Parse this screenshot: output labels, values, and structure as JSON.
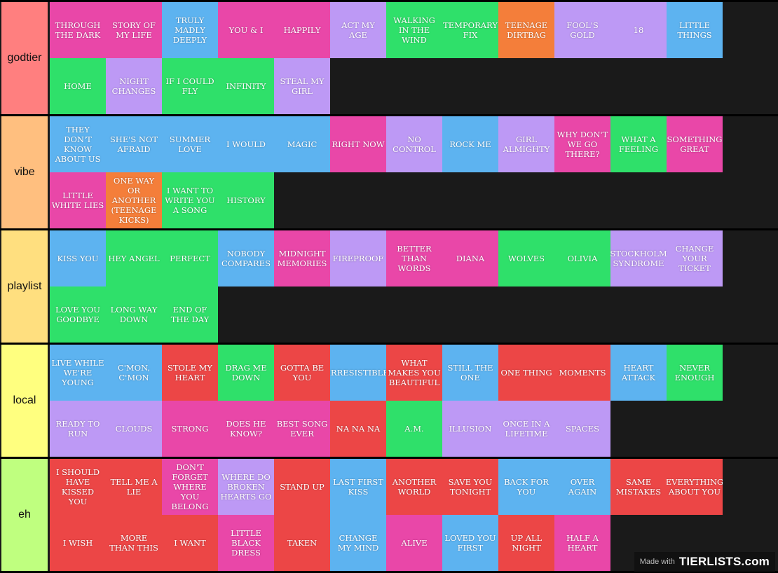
{
  "colors": {
    "pink": "#e947a8",
    "blue": "#5db3f0",
    "purple": "#bd99f5",
    "green": "#2fe06a",
    "orange": "#f47e3a",
    "red": "#ec4646"
  },
  "tiers": [
    {
      "label": "godtier",
      "color": "#ff7f7f",
      "items": [
        {
          "text": "THROUGH THE DARK",
          "color": "pink"
        },
        {
          "text": "STORY OF MY LIFE",
          "color": "pink"
        },
        {
          "text": "TRULY MADLY DEEPLY",
          "color": "blue"
        },
        {
          "text": "YOU & I",
          "color": "pink"
        },
        {
          "text": "HAPPILY",
          "color": "pink"
        },
        {
          "text": "ACT MY AGE",
          "color": "purple"
        },
        {
          "text": "WALKING IN THE WIND",
          "color": "green"
        },
        {
          "text": "TEMPORARY FIX",
          "color": "green"
        },
        {
          "text": "TEENAGE DIRTBAG",
          "color": "orange"
        },
        {
          "text": "FOOL'S GOLD",
          "color": "purple"
        },
        {
          "text": "18",
          "color": "purple"
        },
        {
          "text": "LITTLE THINGS",
          "color": "blue"
        },
        {
          "text": "HOME",
          "color": "green"
        },
        {
          "text": "NIGHT CHANGES",
          "color": "purple"
        },
        {
          "text": "IF I COULD FLY",
          "color": "green"
        },
        {
          "text": "INFINITY",
          "color": "green"
        },
        {
          "text": "STEAL MY GIRL",
          "color": "purple"
        }
      ]
    },
    {
      "label": "vibe",
      "color": "#ffbf7f",
      "items": [
        {
          "text": "THEY DON'T KNOW ABOUT US",
          "color": "blue"
        },
        {
          "text": "SHE'S NOT AFRAID",
          "color": "blue"
        },
        {
          "text": "SUMMER LOVE",
          "color": "blue"
        },
        {
          "text": "I WOULD",
          "color": "blue"
        },
        {
          "text": "MAGIC",
          "color": "blue"
        },
        {
          "text": "RIGHT NOW",
          "color": "pink"
        },
        {
          "text": "NO CONTROL",
          "color": "purple"
        },
        {
          "text": "ROCK ME",
          "color": "blue"
        },
        {
          "text": "GIRL ALMIGHTY",
          "color": "purple"
        },
        {
          "text": "WHY DON'T WE GO THERE?",
          "color": "pink"
        },
        {
          "text": "WHAT A FEELING",
          "color": "green"
        },
        {
          "text": "SOMETHING GREAT",
          "color": "pink"
        },
        {
          "text": "LITTLE WHITE LIES",
          "color": "pink"
        },
        {
          "text": "ONE WAY OR ANOTHER (TEENAGE KICKS)",
          "color": "orange"
        },
        {
          "text": "I WANT TO WRITE YOU A SONG",
          "color": "green"
        },
        {
          "text": "HISTORY",
          "color": "green"
        }
      ]
    },
    {
      "label": "playlist",
      "color": "#ffdf7f",
      "items": [
        {
          "text": "KISS YOU",
          "color": "blue"
        },
        {
          "text": "HEY ANGEL",
          "color": "green"
        },
        {
          "text": "PERFECT",
          "color": "green"
        },
        {
          "text": "NOBODY COMPARES",
          "color": "blue"
        },
        {
          "text": "MIDNIGHT MEMORIES",
          "color": "pink"
        },
        {
          "text": "FIREPROOF",
          "color": "purple"
        },
        {
          "text": "BETTER THAN WORDS",
          "color": "pink"
        },
        {
          "text": "DIANA",
          "color": "pink"
        },
        {
          "text": "WOLVES",
          "color": "green"
        },
        {
          "text": "OLIVIA",
          "color": "green"
        },
        {
          "text": "STOCKHOLM SYNDROME",
          "color": "purple"
        },
        {
          "text": "CHANGE YOUR TICKET",
          "color": "purple"
        },
        {
          "text": "LOVE YOU GOODBYE",
          "color": "green"
        },
        {
          "text": "LONG WAY DOWN",
          "color": "green"
        },
        {
          "text": "END OF THE DAY",
          "color": "green"
        }
      ]
    },
    {
      "label": "local",
      "color": "#ffff7f",
      "items": [
        {
          "text": "LIVE WHILE WE'RE YOUNG",
          "color": "blue"
        },
        {
          "text": "C'MON, C'MON",
          "color": "blue"
        },
        {
          "text": "STOLE MY HEART",
          "color": "red"
        },
        {
          "text": "DRAG ME DOWN",
          "color": "green"
        },
        {
          "text": "GOTTA BE YOU",
          "color": "red"
        },
        {
          "text": "IRRESISTIBLE",
          "color": "blue"
        },
        {
          "text": "WHAT MAKES YOU BEAUTIFUL",
          "color": "red"
        },
        {
          "text": "STILL THE ONE",
          "color": "blue"
        },
        {
          "text": "ONE THING",
          "color": "red"
        },
        {
          "text": "MOMENTS",
          "color": "red"
        },
        {
          "text": "HEART ATTACK",
          "color": "blue"
        },
        {
          "text": "NEVER ENOUGH",
          "color": "green"
        },
        {
          "text": "READY TO RUN",
          "color": "purple"
        },
        {
          "text": "CLOUDS",
          "color": "purple"
        },
        {
          "text": "STRONG",
          "color": "pink"
        },
        {
          "text": "DOES HE KNOW?",
          "color": "pink"
        },
        {
          "text": "BEST SONG EVER",
          "color": "pink"
        },
        {
          "text": "NA NA NA",
          "color": "red"
        },
        {
          "text": "A.M.",
          "color": "green"
        },
        {
          "text": "ILLUSION",
          "color": "purple"
        },
        {
          "text": "ONCE IN A LIFETIME",
          "color": "purple"
        },
        {
          "text": "SPACES",
          "color": "purple"
        }
      ]
    },
    {
      "label": "eh",
      "color": "#bfff7f",
      "items": [
        {
          "text": "I SHOULD HAVE KISSED YOU",
          "color": "red"
        },
        {
          "text": "TELL ME A LIE",
          "color": "red"
        },
        {
          "text": "DON'T FORGET WHERE YOU BELONG",
          "color": "pink"
        },
        {
          "text": "WHERE DO BROKEN HEARTS GO",
          "color": "purple"
        },
        {
          "text": "STAND UP",
          "color": "red"
        },
        {
          "text": "LAST FIRST KISS",
          "color": "blue"
        },
        {
          "text": "ANOTHER WORLD",
          "color": "red"
        },
        {
          "text": "SAVE YOU TONIGHT",
          "color": "red"
        },
        {
          "text": "BACK FOR YOU",
          "color": "blue"
        },
        {
          "text": "OVER AGAIN",
          "color": "blue"
        },
        {
          "text": "SAME MISTAKES",
          "color": "red"
        },
        {
          "text": "EVERYTHING ABOUT YOU",
          "color": "red"
        },
        {
          "text": "I WISH",
          "color": "red"
        },
        {
          "text": "MORE THAN THIS",
          "color": "red"
        },
        {
          "text": "I WANT",
          "color": "red"
        },
        {
          "text": "LITTLE BLACK DRESS",
          "color": "pink"
        },
        {
          "text": "TAKEN",
          "color": "red"
        },
        {
          "text": "CHANGE MY MIND",
          "color": "blue"
        },
        {
          "text": "ALIVE",
          "color": "pink"
        },
        {
          "text": "LOVED YOU FIRST",
          "color": "blue"
        },
        {
          "text": "UP ALL NIGHT",
          "color": "red"
        },
        {
          "text": "HALF A HEART",
          "color": "pink"
        }
      ]
    }
  ],
  "watermark": {
    "made_with": "Made with",
    "brand": "TIERLISTS.com"
  }
}
